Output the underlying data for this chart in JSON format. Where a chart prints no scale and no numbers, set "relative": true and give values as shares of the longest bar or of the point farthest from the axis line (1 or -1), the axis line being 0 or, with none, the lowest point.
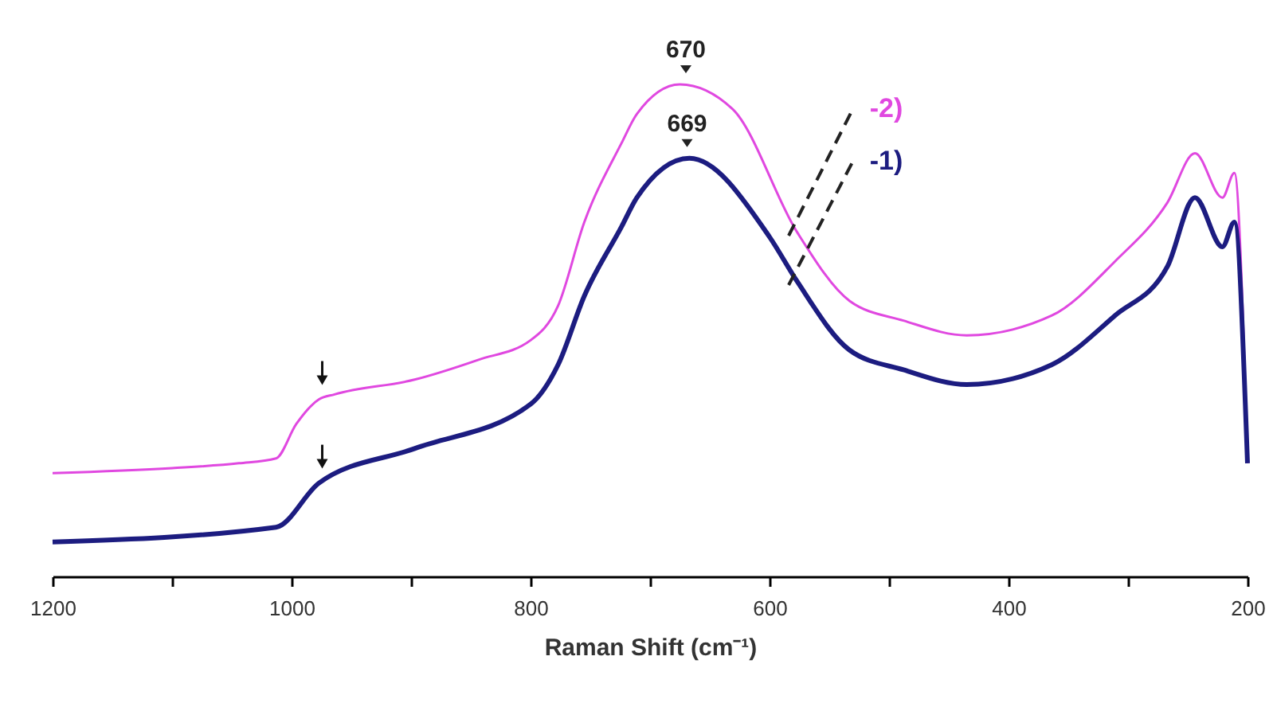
{
  "chart_data": {
    "type": "line",
    "relative": true,
    "xlabel": "Raman Shift (cm⁻¹)",
    "xlim": [
      1200,
      200
    ],
    "xticks": [
      1200,
      {
        "value": 1100,
        "label": null
      },
      1000,
      {
        "value": 900,
        "label": null
      },
      800,
      {
        "value": 700,
        "label": null
      },
      600,
      {
        "value": 500,
        "label": null
      },
      400,
      {
        "value": 300,
        "label": null
      },
      200
    ],
    "annotations": [
      {
        "text": "670",
        "x": 670,
        "y": 1.0
      },
      {
        "text": "669",
        "x": 669,
        "y": 0.85
      }
    ],
    "grid": false,
    "series": [
      {
        "name": "-2)",
        "color": "#e048e0",
        "x": [
          1200,
          1100,
          1044,
          1013,
          996,
          977,
          964,
          897,
          844,
          800,
          777,
          755,
          724,
          711,
          675,
          631,
          577,
          533,
          488,
          435,
          364,
          311,
          267,
          244,
          221,
          211,
          200
        ],
        "values": [
          0.21,
          0.22,
          0.23,
          0.24,
          0.31,
          0.36,
          0.37,
          0.4,
          0.44,
          0.48,
          0.55,
          0.72,
          0.88,
          0.94,
          1.0,
          0.95,
          0.7,
          0.56,
          0.52,
          0.49,
          0.53,
          0.64,
          0.76,
          0.86,
          0.77,
          0.82,
          0.23
        ]
      },
      {
        "name": "-1)",
        "color": "#1c1c80",
        "x": [
          1200,
          1013,
          977,
          897,
          800,
          777,
          755,
          724,
          711,
          667,
          600,
          577,
          533,
          488,
          435,
          364,
          311,
          267,
          244,
          221,
          211,
          200
        ],
        "values": [
          0.07,
          0.1,
          0.19,
          0.26,
          0.35,
          0.43,
          0.57,
          0.71,
          0.77,
          0.85,
          0.69,
          0.6,
          0.46,
          0.42,
          0.39,
          0.43,
          0.53,
          0.63,
          0.77,
          0.67,
          0.72,
          0.23
        ]
      }
    ]
  }
}
